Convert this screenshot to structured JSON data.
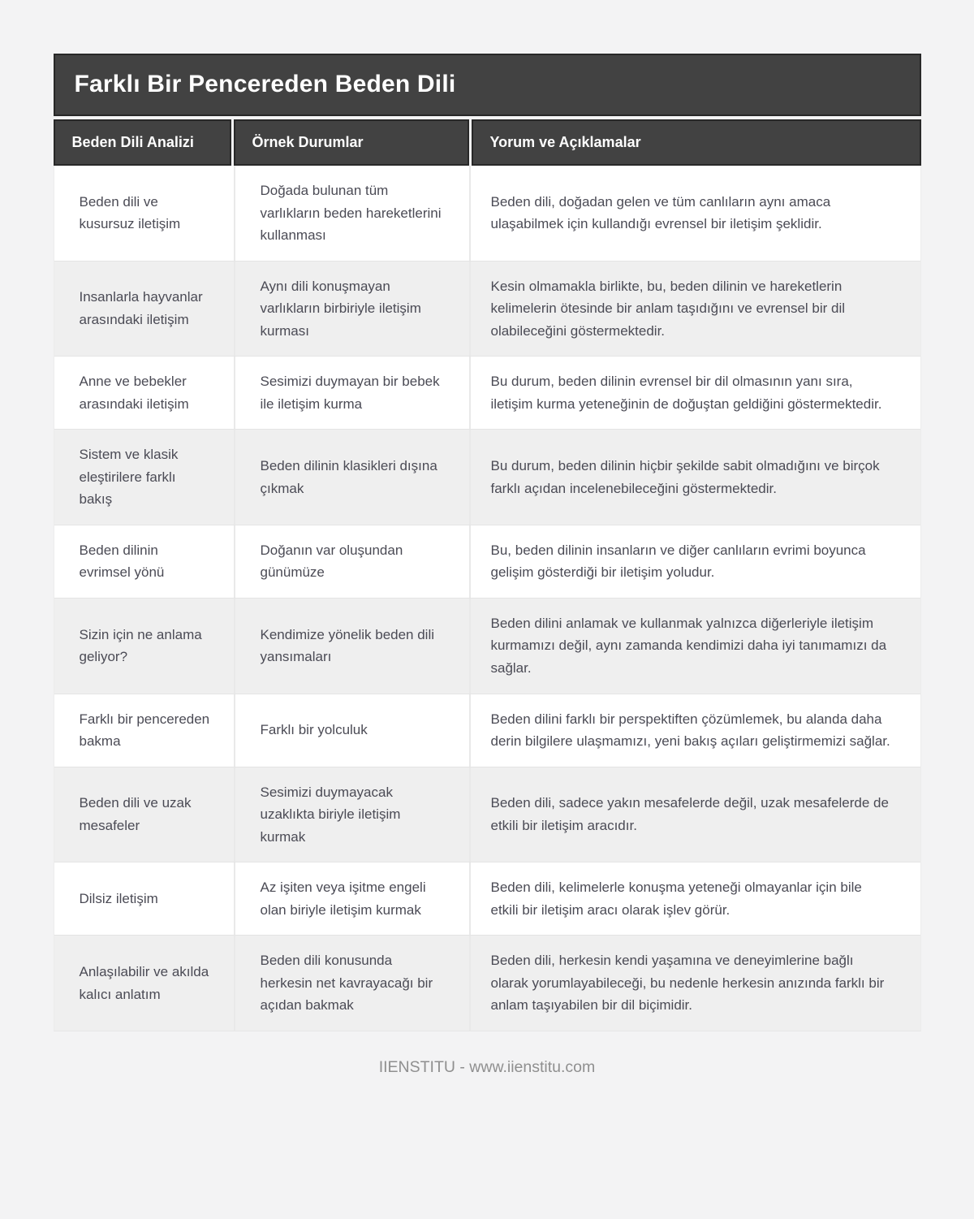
{
  "page": {
    "title": "Farklı Bir Pencereden Beden Dili",
    "footer": "IIENSTITU - www.iienstitu.com"
  },
  "colors": {
    "header_bg": "#424242",
    "header_border": "#282828",
    "header_text": "#ffffff",
    "row_alt_bg": "#efefef",
    "body_text": "#4b4b55",
    "page_bg": "#f3f3f4",
    "footer_text": "#8f8f8f"
  },
  "table": {
    "columns": [
      "Beden Dili Analizi",
      "Örnek Durumlar",
      "Yorum ve Açıklamalar"
    ],
    "rows": [
      {
        "analiz": "Beden dili ve kusursuz iletişim",
        "ornek": "Doğada bulunan tüm varlıkların beden hareketlerini kullanması",
        "yorum": "Beden dili, doğadan gelen ve tüm canlıların aynı amaca ulaşabilmek için kullandığı evrensel bir iletişim şeklidir."
      },
      {
        "analiz": "Insanlarla hayvanlar arasındaki iletişim",
        "ornek": "Aynı dili konuşmayan varlıkların birbiriyle iletişim kurması",
        "yorum": "Kesin olmamakla birlikte, bu, beden dilinin ve hareketlerin kelimelerin ötesinde bir anlam taşıdığını ve evrensel bir dil olabileceğini göstermektedir."
      },
      {
        "analiz": "Anne ve bebekler arasındaki iletişim",
        "ornek": "Sesimizi duymayan bir bebek ile iletişim kurma",
        "yorum": "Bu durum, beden dilinin evrensel bir dil olmasının yanı sıra, iletişim kurma yeteneğinin de doğuştan geldiğini göstermektedir."
      },
      {
        "analiz": "Sistem ve klasik eleştirilere farklı bakış",
        "ornek": "Beden dilinin klasikleri dışına çıkmak",
        "yorum": "Bu durum, beden dilinin hiçbir şekilde sabit olmadığını ve birçok farklı açıdan incelenebileceğini göstermektedir."
      },
      {
        "analiz": "Beden dilinin evrimsel yönü",
        "ornek": "Doğanın var oluşundan günümüze",
        "yorum": "Bu, beden dilinin insanların ve diğer canlıların evrimi boyunca gelişim gösterdiği bir iletişim yoludur."
      },
      {
        "analiz": "Sizin için ne anlama geliyor?",
        "ornek": "Kendimize yönelik beden dili yansımaları",
        "yorum": "Beden dilini anlamak ve kullanmak yalnızca diğerleriyle iletişim kurmamızı değil, aynı zamanda kendimizi daha iyi tanımamızı da sağlar."
      },
      {
        "analiz": "Farklı bir pencereden bakma",
        "ornek": "Farklı bir yolculuk",
        "yorum": "Beden dilini farklı bir perspektiften çözümlemek, bu alanda daha derin bilgilere ulaşmamızı, yeni bakış açıları geliştirmemizi sağlar."
      },
      {
        "analiz": "Beden dili ve uzak mesafeler",
        "ornek": "Sesimizi duymayacak uzaklıkta biriyle iletişim kurmak",
        "yorum": "Beden dili, sadece yakın mesafelerde değil, uzak mesafelerde de etkili bir iletişim aracıdır."
      },
      {
        "analiz": "Dilsiz iletişim",
        "ornek": "Az işiten veya işitme engeli olan biriyle iletişim kurmak",
        "yorum": "Beden dili, kelimelerle konuşma yeteneği olmayanlar için bile etkili bir iletişim aracı olarak işlev görür."
      },
      {
        "analiz": "Anlaşılabilir ve akılda kalıcı anlatım",
        "ornek": "Beden dili konusunda herkesin net kavrayacağı bir açıdan bakmak",
        "yorum": "Beden dili, herkesin kendi yaşamına ve deneyimlerine bağlı olarak yorumlayabileceği, bu nedenle herkesin anızında farklı bir anlam taşıyabilen bir dil biçimidir."
      }
    ]
  }
}
